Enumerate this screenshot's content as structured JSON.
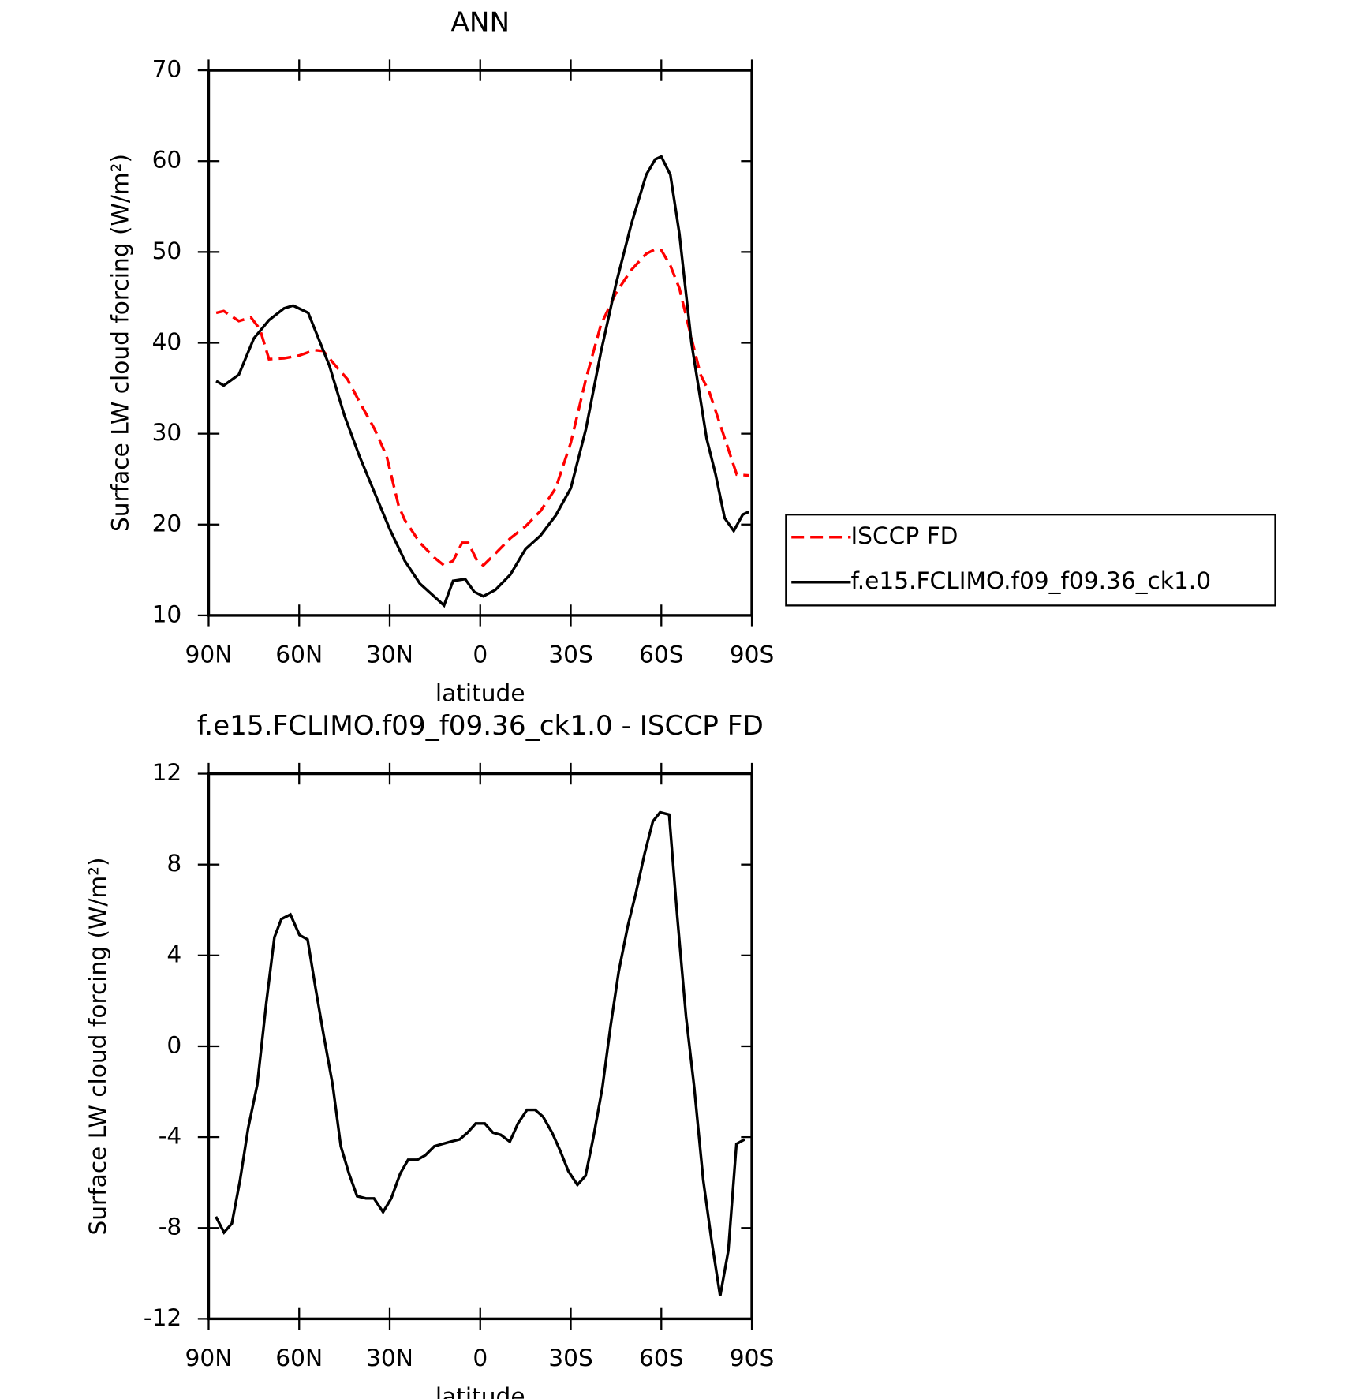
{
  "chart_data": [
    {
      "type": "line",
      "title": "ANN",
      "xlabel": "latitude",
      "ylabel": "Surface LW cloud forcing (W/m²)",
      "xlim": [
        90,
        -90
      ],
      "ylim": [
        10,
        70
      ],
      "xticks": [
        {
          "value": 90,
          "label": "90N"
        },
        {
          "value": 60,
          "label": "60N"
        },
        {
          "value": 30,
          "label": "30N"
        },
        0,
        {
          "value": -30,
          "label": "30S"
        },
        {
          "value": -60,
          "label": "60S"
        },
        {
          "value": -90,
          "label": "90S"
        }
      ],
      "yticks": [
        10,
        20,
        30,
        40,
        50,
        60,
        70
      ],
      "legend": "right",
      "series": [
        {
          "name": "ISCCP FD",
          "color": "#ff0000",
          "dashed": true,
          "x": [
            87.5,
            85,
            80,
            76,
            73,
            70,
            65,
            60,
            55,
            52,
            48,
            44,
            40,
            35,
            31,
            27,
            25,
            20,
            15,
            12,
            9,
            6,
            4,
            1,
            -1,
            -5,
            -10,
            -15,
            -20,
            -25,
            -30,
            -35,
            -40,
            -45,
            -50,
            -55,
            -58,
            -60,
            -63,
            -66,
            -70,
            -73,
            -76,
            -79,
            -82,
            -85,
            -89
          ],
          "values": [
            43.3,
            43.5,
            42.4,
            42.8,
            41.5,
            38.2,
            38.3,
            38.6,
            39.2,
            39.1,
            37.5,
            36,
            33.5,
            30.5,
            27.5,
            22,
            20.5,
            18,
            16.3,
            15.5,
            16,
            18,
            18,
            16,
            15.5,
            16.8,
            18.5,
            19.8,
            21.5,
            24,
            29,
            36,
            42,
            45.5,
            48,
            49.8,
            50.3,
            50.2,
            48.5,
            46,
            40.5,
            36.5,
            34.5,
            31.5,
            28.5,
            25.5,
            25.4
          ]
        },
        {
          "name": "f.e15.FCLIMO.f09_f09.36_ck1.0",
          "color": "#000000",
          "dashed": false,
          "x": [
            87.5,
            85,
            80,
            75,
            70,
            65,
            62,
            57,
            50,
            45,
            40,
            35,
            30,
            25,
            20,
            15,
            12,
            9,
            5,
            2,
            -1,
            -5,
            -10,
            -15,
            -20,
            -25,
            -30,
            -35,
            -40,
            -45,
            -50,
            -55,
            -58,
            -60,
            -63,
            -66,
            -70,
            -75,
            -78,
            -81,
            -84,
            -87,
            -89
          ],
          "values": [
            35.8,
            35.3,
            36.5,
            40.5,
            42.5,
            43.8,
            44.1,
            43.3,
            37.5,
            32,
            27.5,
            23.5,
            19.5,
            16,
            13.5,
            12,
            11.1,
            13.8,
            14,
            12.6,
            12.1,
            12.8,
            14.5,
            17.3,
            18.8,
            21,
            24,
            30.5,
            39,
            46.5,
            53,
            58.5,
            60.2,
            60.5,
            58.5,
            52,
            40,
            29.5,
            25.5,
            20.7,
            19.3,
            21.1,
            21.4
          ]
        }
      ]
    },
    {
      "type": "line",
      "title": "f.e15.FCLIMO.f09_f09.36_ck1.0 - ISCCP FD",
      "xlabel": "latitude",
      "ylabel": "Surface LW cloud forcing (W/m²)",
      "xlim": [
        90,
        -90
      ],
      "ylim": [
        -12,
        12
      ],
      "xticks": [
        {
          "value": 90,
          "label": "90N"
        },
        {
          "value": 60,
          "label": "60N"
        },
        {
          "value": 30,
          "label": "30N"
        },
        0,
        {
          "value": -30,
          "label": "30S"
        },
        {
          "value": -60,
          "label": "60S"
        },
        {
          "value": -90,
          "label": "90S"
        }
      ],
      "yticks": [
        -12,
        -8,
        -4,
        0,
        4,
        8,
        12
      ],
      "series": [
        {
          "color": "#000000",
          "dashed": false,
          "x": [
            87.6,
            84.9,
            82.3,
            79.6,
            76.9,
            73.9,
            70.9,
            68.2,
            65.9,
            62.9,
            59.9,
            57.2,
            54.5,
            51.9,
            48.9,
            46.2,
            43.5,
            40.8,
            37.9,
            35.2,
            32.2,
            29.5,
            26.5,
            23.9,
            20.9,
            18.2,
            15.2,
            12.5,
            9.8,
            6.8,
            4.2,
            1.5,
            -1.5,
            -4.2,
            -6.8,
            -9.8,
            -12.5,
            -15.5,
            -18.2,
            -20.8,
            -23.8,
            -26.5,
            -29.2,
            -32.2,
            -34.9,
            -37.5,
            -40.5,
            -43.2,
            -45.9,
            -48.9,
            -51.5,
            -54.5,
            -57.2,
            -59.6,
            -62.6,
            -65.3,
            -68.2,
            -70.9,
            -73.9,
            -76.6,
            -79.5,
            -82.2,
            -84.9,
            -87.6
          ],
          "values": [
            -7.5,
            -8.2,
            -7.8,
            -5.9,
            -3.6,
            -1.7,
            1.9,
            4.8,
            5.6,
            5.8,
            4.9,
            4.7,
            2.5,
            0.5,
            -1.7,
            -4.4,
            -5.6,
            -6.6,
            -6.7,
            -6.7,
            -7.3,
            -6.7,
            -5.6,
            -5,
            -5,
            -4.8,
            -4.4,
            -4.3,
            -4.2,
            -4.1,
            -3.8,
            -3.4,
            -3.4,
            -3.8,
            -3.9,
            -4.2,
            -3.4,
            -2.8,
            -2.8,
            -3.1,
            -3.8,
            -4.6,
            -5.5,
            -6.1,
            -5.7,
            -4,
            -1.8,
            0.9,
            3.3,
            5.3,
            6.7,
            8.5,
            9.9,
            10.3,
            10.2,
            5.7,
            1.3,
            -1.8,
            -5.9,
            -8.5,
            -11,
            -9,
            -4.3,
            -4.1
          ]
        }
      ]
    }
  ]
}
